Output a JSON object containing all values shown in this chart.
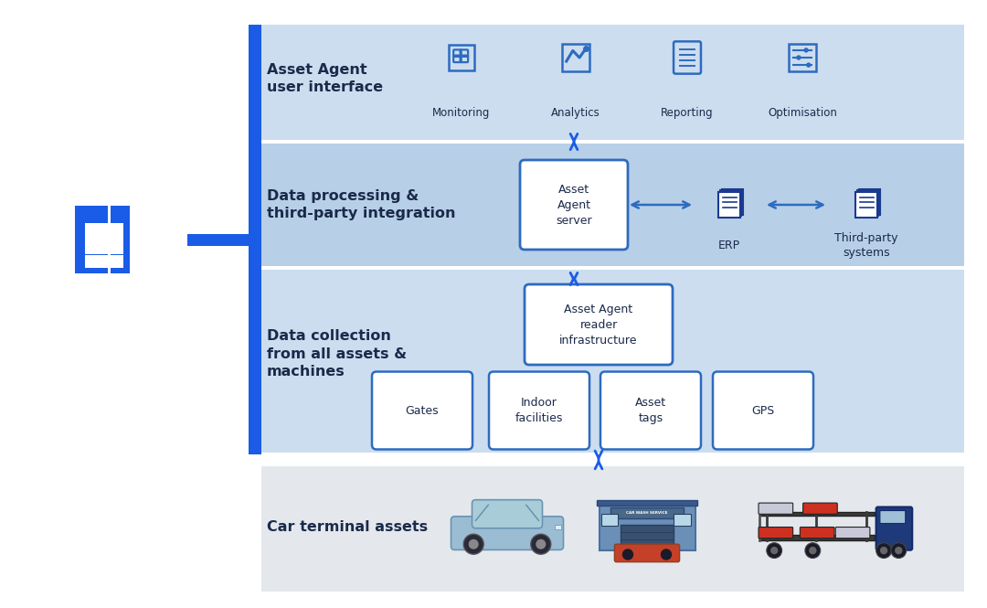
{
  "bg_color": "#ffffff",
  "layer1_color": "#ccddf0",
  "layer2_color": "#b8cfe8",
  "layer3_color": "#ccddf0",
  "layer4_color": "#e4e8ed",
  "box_color": "#ffffff",
  "box_edge_color": "#2d6bbf",
  "accent_blue": "#1a5ce6",
  "dark_blue": "#1a3a8f",
  "text_dark": "#1a2a4a",
  "layer1_label": "Asset Agent\nuser interface",
  "layer2_label": "Data processing &\nthird-party integration",
  "layer3_label": "Data collection\nfrom all assets &\nmachines",
  "layer4_label": "Car terminal assets",
  "ui_items": [
    "Monitoring",
    "Analytics",
    "Reporting",
    "Optimisation"
  ],
  "collection_boxes": [
    "Gates",
    "Indoor\nfacilities",
    "Asset\ntags",
    "GPS"
  ],
  "server_label": "Asset\nAgent\nserver",
  "reader_label": "Asset Agent\nreader\ninfrastructure",
  "erp_label": "ERP",
  "thirdparty_label": "Third-party\nsystems",
  "bracket_color": "#1a5ce6",
  "sep_color": "#ffffff"
}
